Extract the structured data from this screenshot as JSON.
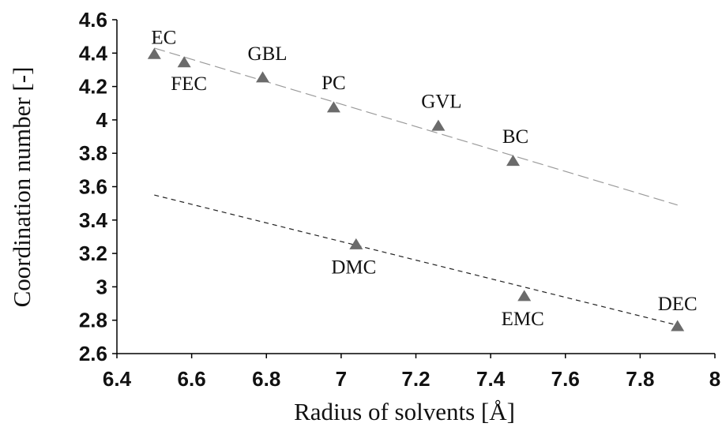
{
  "chart_data": {
    "type": "scatter",
    "title": "",
    "xlabel": "Radius of solvents [Å]",
    "ylabel": "Coordination number [-]",
    "xlim": [
      6.4,
      8
    ],
    "ylim": [
      2.6,
      4.6
    ],
    "x_ticks": [
      "6.4",
      "6.6",
      "6.8",
      "7",
      "7.2",
      "7.4",
      "7.6",
      "7.8",
      "8"
    ],
    "y_ticks": [
      "2.6",
      "2.8",
      "3",
      "3.2",
      "3.4",
      "3.6",
      "3.8",
      "4",
      "4.2",
      "4.4",
      "4.6"
    ],
    "grid": false,
    "legend": "none",
    "marker": "triangle",
    "marker_color": "#6b6b6b",
    "series": [
      {
        "points": [
          {
            "label": "EC",
            "x": 6.5,
            "y": 4.39
          },
          {
            "label": "FEC",
            "x": 6.58,
            "y": 4.34
          },
          {
            "label": "GBL",
            "x": 6.79,
            "y": 4.25
          },
          {
            "label": "PC",
            "x": 6.98,
            "y": 4.07
          },
          {
            "label": "GVL",
            "x": 7.26,
            "y": 3.96
          },
          {
            "label": "BC",
            "x": 7.46,
            "y": 3.75
          }
        ],
        "trendline": {
          "x": [
            6.5,
            7.9
          ],
          "y": [
            4.43,
            3.49
          ],
          "style": "long-dash"
        }
      },
      {
        "points": [
          {
            "label": "DMC",
            "x": 7.04,
            "y": 3.25
          },
          {
            "label": "EMC",
            "x": 7.49,
            "y": 2.94
          },
          {
            "label": "DEC",
            "x": 7.9,
            "y": 2.76
          }
        ],
        "trendline": {
          "x": [
            6.5,
            7.9
          ],
          "y": [
            3.55,
            2.77
          ],
          "style": "short-dash"
        }
      }
    ]
  }
}
